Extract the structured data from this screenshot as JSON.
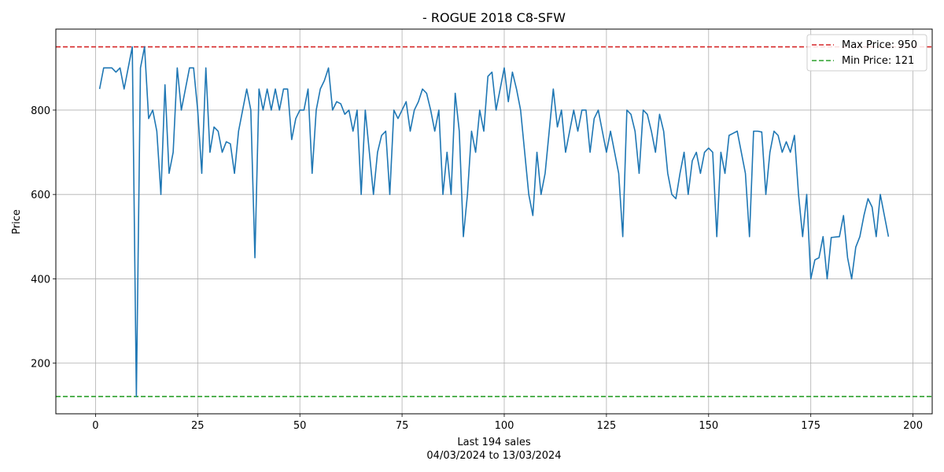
{
  "chart_data": {
    "type": "line",
    "title": "- ROGUE 2018 C8-SFW",
    "xlabel": "Last 194 sales",
    "xlabel_sub": "04/03/2024 to 13/03/2024",
    "ylabel": "Price",
    "xlim": [
      -9.7,
      204.7
    ],
    "ylim": [
      80,
      992
    ],
    "x_ticks": [
      0,
      25,
      50,
      75,
      100,
      125,
      150,
      175,
      200
    ],
    "y_ticks": [
      200,
      400,
      600,
      800
    ],
    "grid": true,
    "legend_position": "top-right",
    "colors": {
      "series": "#1f77b4",
      "max_line": "#d62728",
      "min_line": "#2ca02c",
      "grid": "#b0b0b0"
    },
    "reference_lines": [
      {
        "label": "Max Price: 950",
        "value": 950,
        "color": "#d62728",
        "style": "dashed"
      },
      {
        "label": "Min Price: 121",
        "value": 121,
        "color": "#2ca02c",
        "style": "dashed"
      }
    ],
    "series": [
      {
        "x": [
          1,
          2,
          3,
          4,
          5,
          6,
          7,
          8,
          9,
          10,
          11,
          12,
          13,
          14,
          15,
          16,
          17,
          18,
          19,
          20,
          21,
          22,
          23,
          24,
          25,
          26,
          27,
          28,
          29,
          30,
          31,
          32,
          33,
          34,
          35,
          36,
          37,
          38,
          39,
          40,
          41,
          42,
          43,
          44,
          45,
          46,
          47,
          48,
          49,
          50,
          51,
          52,
          53,
          54,
          55,
          56,
          57,
          58,
          59,
          60,
          61,
          62,
          63,
          64,
          65,
          66,
          67,
          68,
          69,
          70,
          71,
          72,
          73,
          74,
          75,
          76,
          77,
          78,
          79,
          80,
          81,
          82,
          83,
          84,
          85,
          86,
          87,
          88,
          89,
          90,
          91,
          92,
          93,
          94,
          95,
          96,
          97,
          98,
          99,
          100,
          101,
          102,
          103,
          104,
          105,
          106,
          107,
          108,
          109,
          110,
          111,
          112,
          113,
          114,
          115,
          116,
          117,
          118,
          119,
          120,
          121,
          122,
          123,
          124,
          125,
          126,
          127,
          128,
          129,
          130,
          131,
          132,
          133,
          134,
          135,
          136,
          137,
          138,
          139,
          140,
          141,
          142,
          143,
          144,
          145,
          146,
          147,
          148,
          149,
          150,
          151,
          152,
          153,
          154,
          155,
          156,
          157,
          158,
          159,
          160,
          161,
          162,
          163,
          164,
          165,
          166,
          167,
          168,
          169,
          170,
          171,
          172,
          173,
          174,
          175,
          176,
          177,
          178,
          179,
          180,
          181,
          182,
          183,
          184,
          185,
          186,
          187,
          188,
          189,
          190,
          191,
          192,
          193,
          194
        ],
        "y": [
          850,
          900,
          900,
          900,
          890,
          900,
          850,
          900,
          950,
          121,
          900,
          950,
          780,
          800,
          750,
          600,
          860,
          650,
          700,
          900,
          800,
          850,
          900,
          900,
          800,
          650,
          900,
          700,
          760,
          750,
          700,
          725,
          720,
          650,
          750,
          800,
          850,
          800,
          450,
          850,
          800,
          850,
          800,
          850,
          800,
          850,
          850,
          730,
          780,
          800,
          800,
          850,
          650,
          800,
          850,
          870,
          900,
          800,
          820,
          815,
          790,
          800,
          750,
          800,
          600,
          800,
          700,
          600,
          700,
          740,
          750,
          600,
          800,
          780,
          800,
          820,
          750,
          800,
          820,
          850,
          840,
          800,
          750,
          800,
          600,
          700,
          600,
          840,
          750,
          500,
          600,
          750,
          700,
          800,
          750,
          880,
          890,
          800,
          850,
          900,
          820,
          890,
          850,
          800,
          700,
          600,
          550,
          700,
          600,
          650,
          750,
          850,
          760,
          800,
          700,
          750,
          800,
          750,
          800,
          800,
          700,
          780,
          800,
          750,
          700,
          750,
          700,
          650,
          500,
          800,
          790,
          750,
          650,
          800,
          790,
          750,
          700,
          790,
          750,
          650,
          600,
          590,
          650,
          700,
          600,
          680,
          700,
          650,
          700,
          710,
          700,
          500,
          700,
          650,
          740,
          745,
          750,
          700,
          650,
          500,
          750,
          750,
          748,
          600,
          700,
          750,
          740,
          700,
          725,
          700,
          740,
          600,
          500,
          600,
          400,
          445,
          450,
          500,
          400,
          498,
          499,
          500,
          550,
          450,
          400,
          475,
          500,
          550,
          590,
          570,
          500,
          600,
          550,
          500
        ]
      }
    ]
  }
}
